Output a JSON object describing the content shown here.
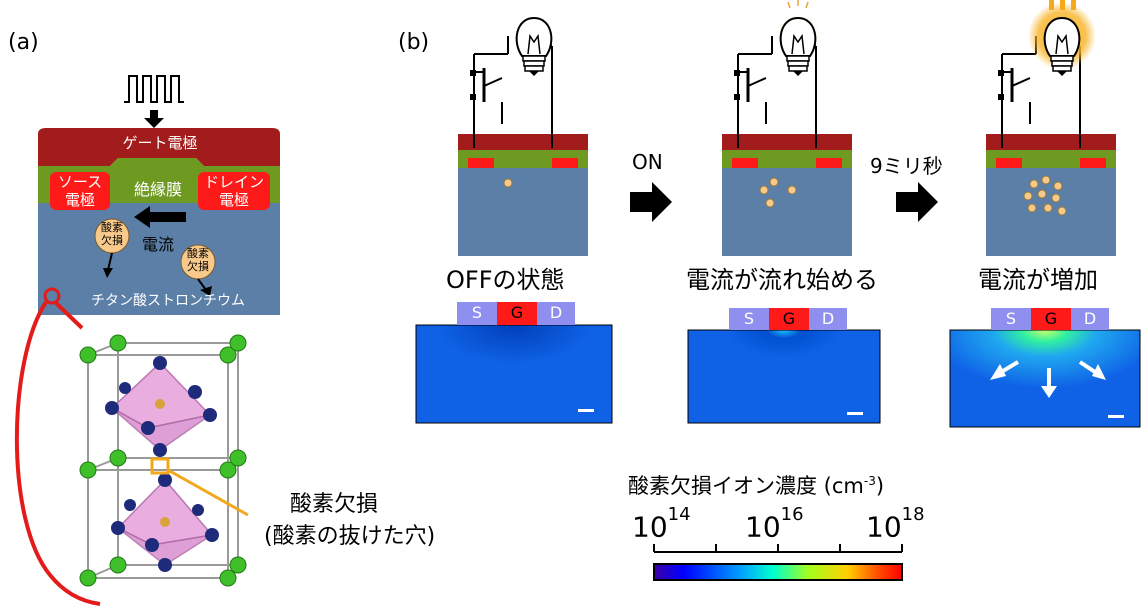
{
  "panel_a": {
    "label": "(a)",
    "gate_electrode": "ゲート電極",
    "source_electrode": "ソース\n電極",
    "insulator": "絶縁膜",
    "drain_electrode": "ドレイン\n電極",
    "current": "電流",
    "vacancy_1": "酸素\n欠損",
    "vacancy_2": "酸素\n欠損",
    "substrate": "チタン酸ストロンチウム",
    "vacancy_title": "酸素欠損",
    "vacancy_subtitle": "(酸素の抜けた穴)"
  },
  "panel_b": {
    "label": "(b)",
    "arrow_1": "ON",
    "arrow_2": "9ミリ秒",
    "steps": [
      {
        "label": "OFFの状態"
      },
      {
        "label": "電流が流れ始める"
      },
      {
        "label": "電流が増加"
      }
    ],
    "sgd": {
      "s": "S",
      "g": "G",
      "d": "D"
    }
  },
  "colorbar": {
    "title": "酸素欠損イオン濃度 (cm",
    "title_sup": "-3",
    "title_close": ")",
    "ticks": [
      {
        "base": "10",
        "exp": "14"
      },
      {
        "base": "10",
        "exp": "16"
      },
      {
        "base": "10",
        "exp": "18"
      }
    ]
  },
  "colors": {
    "gate": "#a31c1c",
    "insulator": "#6f9a22",
    "electrode": "#ff1a1a",
    "substrate": "#5b7fa6",
    "vacancy_dot": "#f7c98a",
    "map_blue": "#0f62e6",
    "sgd_pad": "#8f8ff0",
    "bracket": "#e31b1b"
  }
}
